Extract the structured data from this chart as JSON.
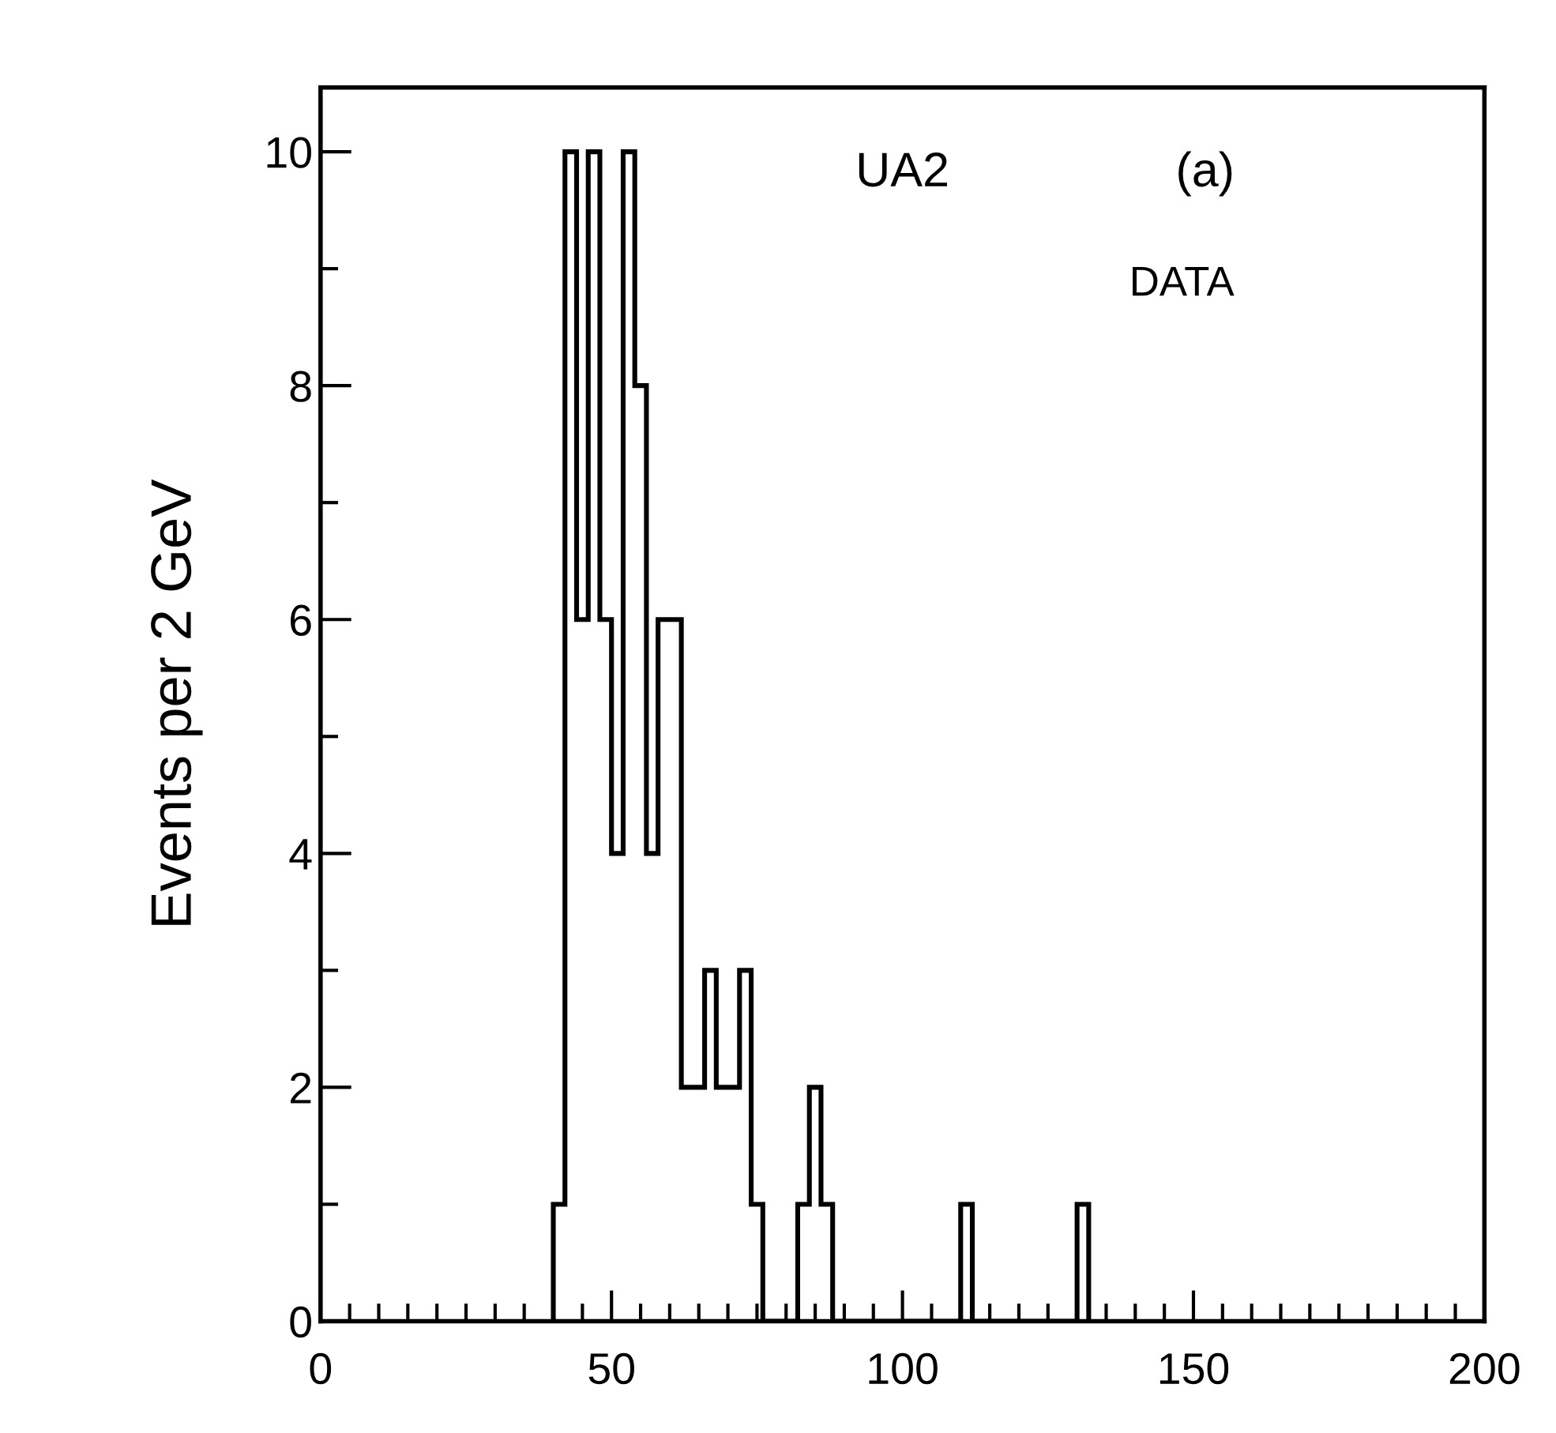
{
  "chart_data": {
    "type": "histogram",
    "ylabel": "Events per 2 GeV",
    "annotations": [
      "UA2",
      "(a)",
      "DATA"
    ],
    "bins": [
      40,
      42,
      44,
      46,
      48,
      50,
      52,
      54,
      56,
      58,
      60,
      62,
      64,
      66,
      68,
      70,
      72,
      74,
      76,
      78,
      80,
      82,
      84,
      86,
      88,
      90,
      92,
      94,
      96,
      98,
      100,
      102,
      104,
      106,
      108,
      110,
      112,
      114,
      116,
      118,
      120,
      122,
      124,
      126,
      128,
      130,
      132
    ],
    "values": [
      1,
      10,
      6,
      10,
      6,
      4,
      10,
      8,
      4,
      6,
      6,
      2,
      2,
      3,
      2,
      2,
      3,
      1,
      0,
      0,
      0,
      1,
      2,
      1,
      0,
      0,
      0,
      0,
      0,
      0,
      0,
      0,
      0,
      0,
      0,
      1,
      0,
      0,
      0,
      0,
      0,
      0,
      0,
      0,
      0,
      1
    ],
    "color": "#000000",
    "xlim": [
      0,
      200
    ],
    "xticks": [
      0,
      50,
      100,
      150,
      200
    ],
    "ylim": [
      0,
      10.55
    ],
    "yticks": [
      0,
      2,
      4,
      6,
      8,
      10
    ],
    "grid": false,
    "legend": false
  }
}
